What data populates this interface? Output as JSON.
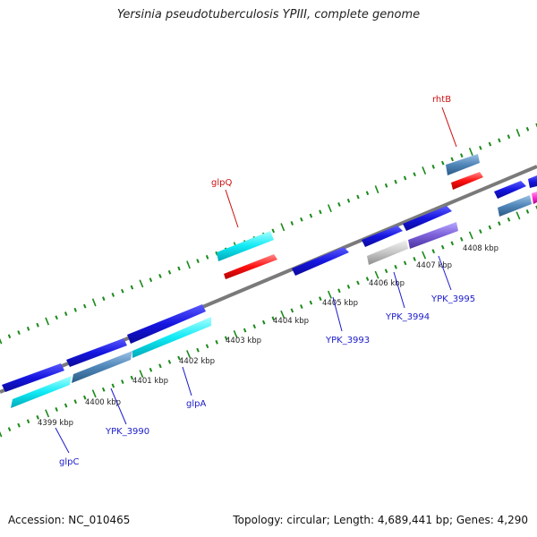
{
  "title": "Yersinia pseudotuberculosis YPIII, complete genome",
  "footer": {
    "accession": "Accession: NC_010465",
    "summary": "Topology: circular; Length: 4,689,441 bp; Genes: 4,290"
  },
  "ticks": [
    "4399 kbp",
    "4400 kbp",
    "4401 kbp",
    "4402 kbp",
    "4403 kbp",
    "4404 kbp",
    "4405 kbp",
    "4406 kbp",
    "4407 kbp",
    "4408 kbp"
  ],
  "labels": {
    "glpC": "glpC",
    "ypk3990": "YPK_3990",
    "glpA": "glpA",
    "glpQ": "glpQ",
    "ypk3993": "YPK_3993",
    "ypk3994": "YPK_3994",
    "ypk3995": "YPK_3995",
    "rhtB": "rhtB"
  },
  "colors": {
    "cds_forward": "#1010dd",
    "cds_reverse": "#00e5f0",
    "cds_steel": "#4f86b8",
    "rna_red": "#ff1010",
    "grey_feature": "#c4c4c4",
    "purple_feature": "#7b5fd8",
    "magenta_feature": "#ff2ad4",
    "backbone": "#7a7a7a",
    "tick_dots": "#1a8a1a",
    "label_blue": "#1a1acc",
    "label_red": "#cc1111"
  }
}
